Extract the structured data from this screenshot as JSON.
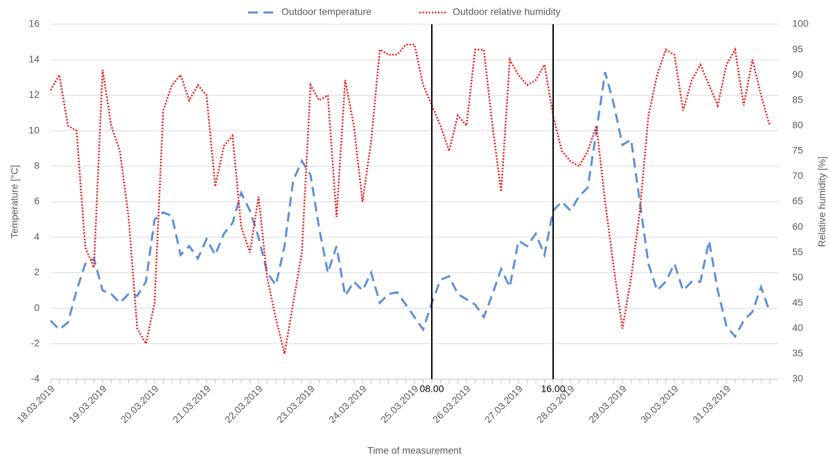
{
  "chart_data": {
    "type": "line",
    "xlabel": "Time of measurement",
    "ylabel": "Temperature [°C]",
    "y2label": "Relative humidity [%]",
    "categories": [
      "18.03.2019",
      null,
      null,
      null,
      null,
      null,
      "19.03.2019",
      null,
      null,
      null,
      null,
      null,
      "20.03.2019",
      null,
      null,
      null,
      null,
      null,
      "21.03.2019",
      null,
      null,
      null,
      null,
      null,
      "22.03.2019",
      null,
      null,
      null,
      null,
      null,
      "23.03.2019",
      null,
      null,
      null,
      null,
      null,
      "24.03.2019",
      null,
      null,
      null,
      null,
      null,
      "25.03.2019",
      null,
      null,
      null,
      null,
      null,
      "26.03.2019",
      null,
      null,
      null,
      null,
      null,
      "27.03.2019",
      null,
      null,
      null,
      null,
      null,
      "28.03.2019",
      null,
      null,
      null,
      null,
      null,
      "29.03.2019",
      null,
      null,
      null,
      null,
      null,
      "30.03.2019",
      null,
      null,
      null,
      null,
      null,
      "31.03.2019",
      null,
      null,
      null,
      null,
      null
    ],
    "series": [
      {
        "name": "Outdoor temperature",
        "color": "#5b8fd6",
        "axis": "y",
        "values": [
          -0.7,
          -1.2,
          -0.8,
          1.0,
          2.5,
          2.8,
          1.0,
          0.8,
          0.3,
          0.8,
          0.7,
          1.5,
          5.0,
          5.4,
          5.2,
          3.0,
          3.5,
          2.8,
          3.9,
          3.0,
          4.2,
          4.8,
          6.5,
          5.5,
          4.0,
          2.0,
          1.3,
          3.5,
          7.2,
          8.3,
          7.5,
          4.5,
          2.0,
          3.5,
          0.7,
          1.5,
          1.0,
          2.0,
          0.3,
          0.8,
          0.9,
          0.2,
          -0.5,
          -1.2,
          0.3,
          1.6,
          1.8,
          0.8,
          0.5,
          0.2,
          -0.5,
          0.8,
          2.2,
          1.2,
          3.8,
          3.5,
          4.2,
          3.0,
          5.5,
          6.0,
          5.5,
          6.3,
          6.8,
          10.0,
          13.3,
          11.5,
          9.2,
          9.5,
          6.0,
          2.5,
          1.0,
          1.5,
          2.5,
          1.0,
          1.5,
          1.5,
          3.8,
          1.0,
          -1.0,
          -1.6,
          -0.7,
          -0.2,
          1.2,
          -0.2
        ]
      },
      {
        "name": "Outdoor relative humidity",
        "color": "#ff0000",
        "axis": "y2",
        "values": [
          87,
          90,
          80,
          79,
          56,
          52,
          91,
          80,
          75,
          62,
          40,
          37,
          45,
          83,
          88,
          90,
          85,
          88,
          86,
          68,
          76,
          78,
          60,
          55,
          66,
          50,
          42,
          35,
          45,
          55,
          88,
          85,
          86,
          62,
          89,
          80,
          65,
          77,
          95,
          94,
          94,
          96,
          96,
          88,
          84,
          80,
          75,
          82,
          80,
          95,
          95,
          80,
          67,
          93,
          90,
          88,
          89,
          92,
          82,
          75,
          73,
          72,
          75,
          80,
          65,
          52,
          40,
          50,
          63,
          82,
          90,
          95,
          94,
          83,
          89,
          92,
          88,
          84,
          92,
          95,
          84,
          93,
          86,
          80
        ]
      }
    ],
    "ylim": [
      -4,
      16
    ],
    "yticks": [
      -4,
      -2,
      0,
      2,
      4,
      6,
      8,
      10,
      12,
      14,
      16
    ],
    "y2lim": [
      30,
      100
    ],
    "y2ticks": [
      30,
      35,
      40,
      45,
      50,
      55,
      60,
      65,
      70,
      75,
      80,
      85,
      90,
      95,
      100
    ],
    "grid": true,
    "legend": "top",
    "vlines": [
      {
        "label": "08.00",
        "at": 44
      },
      {
        "label": "16.00",
        "at": 58
      }
    ]
  }
}
